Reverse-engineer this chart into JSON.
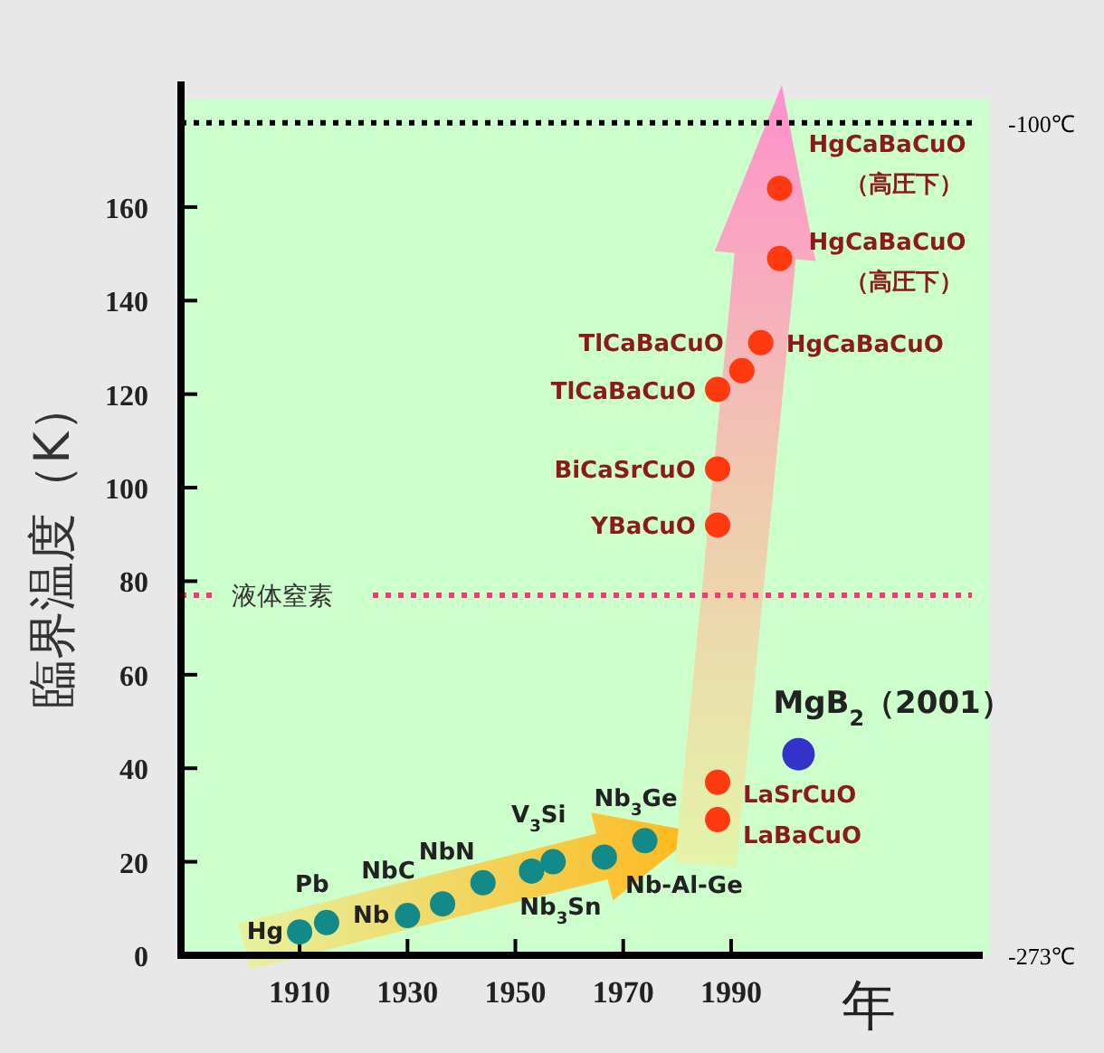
{
  "chart_data": {
    "type": "scatter",
    "xlabel": "年",
    "ylabel": "臨界温度（K）",
    "xlim": [
      1888,
      2038
    ],
    "ylim": [
      0,
      183
    ],
    "xticks": [
      1910,
      1930,
      1950,
      1970,
      1990
    ],
    "yticks": [
      0,
      20,
      40,
      60,
      80,
      100,
      120,
      140,
      160
    ],
    "marker": "circle",
    "grid": false,
    "series": [
      {
        "color": "#138a8a",
        "x": [
          1910,
          1915,
          1930,
          1936.5,
          1944,
          1953,
          1957,
          1966.5,
          1974
        ],
        "values": [
          5,
          7,
          8.5,
          11,
          15.5,
          18,
          20,
          21,
          24.5
        ]
      },
      {
        "color": "#ff3a10",
        "x": [
          1987.5,
          1987.5,
          1987.5,
          1987.5,
          1987.5,
          1992,
          1995.5,
          1999,
          1999
        ],
        "values": [
          29,
          37,
          92,
          104,
          121,
          125,
          131,
          149,
          164
        ]
      },
      {
        "color": "#3333cc",
        "x": [
          2002.5
        ],
        "values": [
          43
        ]
      }
    ],
    "ref_lines": [
      {
        "axis": "y",
        "value": 77,
        "label": "液体窒素",
        "color": "#ff3377",
        "line_style": "dotted"
      },
      {
        "axis": "y",
        "value": 178,
        "label": "-100℃",
        "color": "#000000",
        "line_style": "dotted"
      }
    ],
    "annotations": [
      {
        "text": "Hg",
        "x": 1910,
        "y": 5
      },
      {
        "text": "Pb",
        "x": 1915,
        "y": 7
      },
      {
        "text": "Nb",
        "x": 1930,
        "y": 8.5
      },
      {
        "text": "NbC",
        "x": 1936.5,
        "y": 11
      },
      {
        "text": "NbN",
        "x": 1944,
        "y": 15.5
      },
      {
        "text": "Nb$_{3}$Sn",
        "x": 1953,
        "y": 18
      },
      {
        "text": "V$_{3}$Si",
        "x": 1957,
        "y": 20
      },
      {
        "text": "Nb-Al-Ge",
        "x": 1966.5,
        "y": 21
      },
      {
        "text": "Nb$_{3}$Ge",
        "x": 1974,
        "y": 24.5
      },
      {
        "text": "LaBaCuO",
        "x": 1987.5,
        "y": 29
      },
      {
        "text": "LaSrCuO",
        "x": 1987.5,
        "y": 37
      },
      {
        "text": "YBaCuO",
        "x": 1987.5,
        "y": 92
      },
      {
        "text": "BiCaSrCuO",
        "x": 1987.5,
        "y": 104
      },
      {
        "text": "TlCaBaCuO",
        "x": 1987.5,
        "y": 121
      },
      {
        "text": "TlCaBaCuO",
        "x": 1992,
        "y": 125
      },
      {
        "text": "HgCaBaCuO",
        "x": 1995.5,
        "y": 131
      },
      {
        "text": "HgCaBaCuO（高圧下）",
        "x": 1999,
        "y": 149
      },
      {
        "text": "HgCaBaCuO（高圧下）",
        "x": 1999,
        "y": 164
      },
      {
        "text": "MgB$_{2}$（2001）",
        "x": 2002.5,
        "y": 43
      },
      "-273℃"
    ]
  }
}
